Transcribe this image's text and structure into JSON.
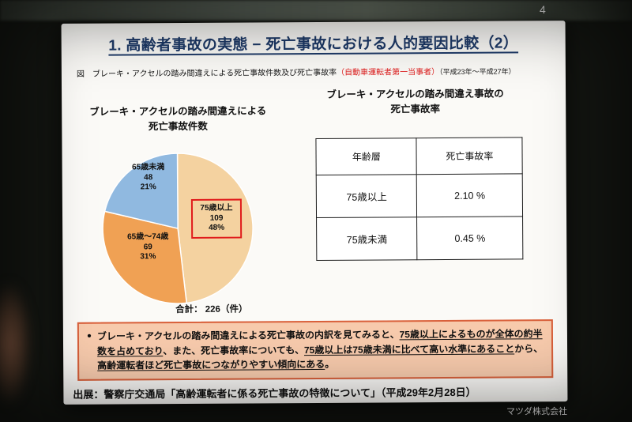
{
  "page_number": "4",
  "brand": "マツダ株式会社",
  "slide": {
    "title": "1. 高齢者事故の実態 − 死亡事故における人的要因比較（2）",
    "caption": {
      "prefix": "図　ブレーキ・アクセルの踏み間違えによる死亡事故件数及び死亡事故率",
      "red": "（自動車運転者第一当事者）",
      "suffix": "（平成23年～平成27年）"
    },
    "pie_title_line1": "ブレーキ・アクセルの踏み間違えによる",
    "pie_title_line2": "死亡事故件数",
    "table_title_line1": "ブレーキ・アクセルの踏み間違え事故の",
    "table_title_line2": "死亡事故率",
    "note": {
      "bullet": "●",
      "segments": [
        {
          "text": "ブレーキ・アクセルの踏み間違えによる死亡事故の内訳を見てみると、",
          "underline": false
        },
        {
          "text": "75歳以上によるものが全体の約半数を占めており",
          "underline": true
        },
        {
          "text": "、また、死亡事故率についても、",
          "underline": false
        },
        {
          "text": "75歳以上は75歳未満に比べて高い水準にあること",
          "underline": true
        },
        {
          "text": "から、",
          "underline": false
        },
        {
          "text": "高齢運転者ほど死亡事故につながりやすい傾向にある",
          "underline": true
        },
        {
          "text": "。",
          "underline": false
        }
      ]
    },
    "source": "出展：警察庁交通局「高齢運転者に係る死亡事故の特徴について」（平成29年2月28日）"
  },
  "chart_data": [
    {
      "type": "pie",
      "title": "ブレーキ・アクセルの踏み間違えによる死亡事故件数",
      "unit": "件",
      "slices": [
        {
          "label": "75歳以上",
          "value": 109,
          "pct": "48%",
          "color": "#f4d2a0"
        },
        {
          "label": "65歳～74歳",
          "value": 69,
          "pct": "31%",
          "color": "#f0a154"
        },
        {
          "label": "65歳未満",
          "value": 48,
          "pct": "21%",
          "color": "#90b9e0"
        }
      ],
      "total": 226,
      "total_label": "合計： 226（件）",
      "start_angle": "top",
      "direction": "clockwise",
      "highlight": "75歳以上",
      "highlight_color": "#e01b1b"
    },
    {
      "type": "table",
      "title": "ブレーキ・アクセルの踏み間違え事故の死亡事故率",
      "headers": [
        "年齢層",
        "死亡事故率"
      ],
      "rows": [
        [
          "75歳以上",
          "2.10 %"
        ],
        [
          "75歳未満",
          "0.45 %"
        ]
      ]
    }
  ]
}
